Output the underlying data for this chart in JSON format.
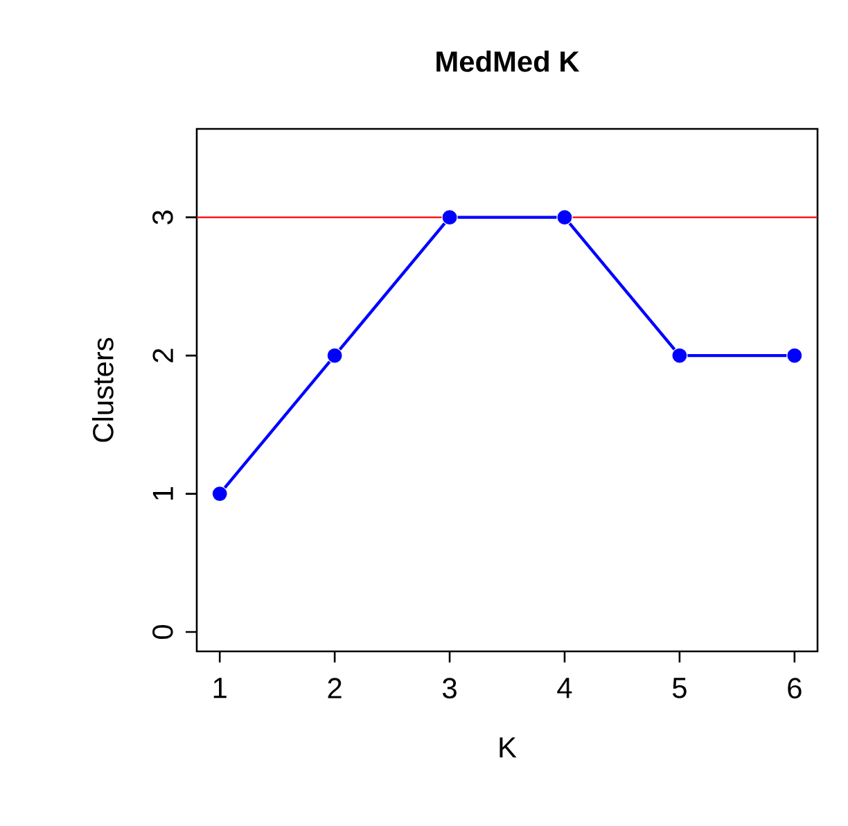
{
  "chart_data": {
    "type": "line",
    "title": "MedMed K",
    "xlabel": "K",
    "ylabel": "Clusters",
    "x": [
      1,
      2,
      3,
      4,
      5,
      6
    ],
    "series": [
      {
        "color": "#0000ff",
        "values": [
          1,
          2,
          3,
          3,
          2,
          2
        ]
      }
    ],
    "xlim": [
      0.8,
      6.2
    ],
    "ylim": [
      -0.14,
      3.64
    ],
    "xticks": [
      1,
      2,
      3,
      4,
      5,
      6
    ],
    "yticks": [
      0,
      1,
      2,
      3
    ],
    "ref_lines": [
      {
        "axis": "y",
        "value": 3,
        "color": "#ff0000"
      }
    ],
    "marker": "circle",
    "line_style": "solid"
  }
}
